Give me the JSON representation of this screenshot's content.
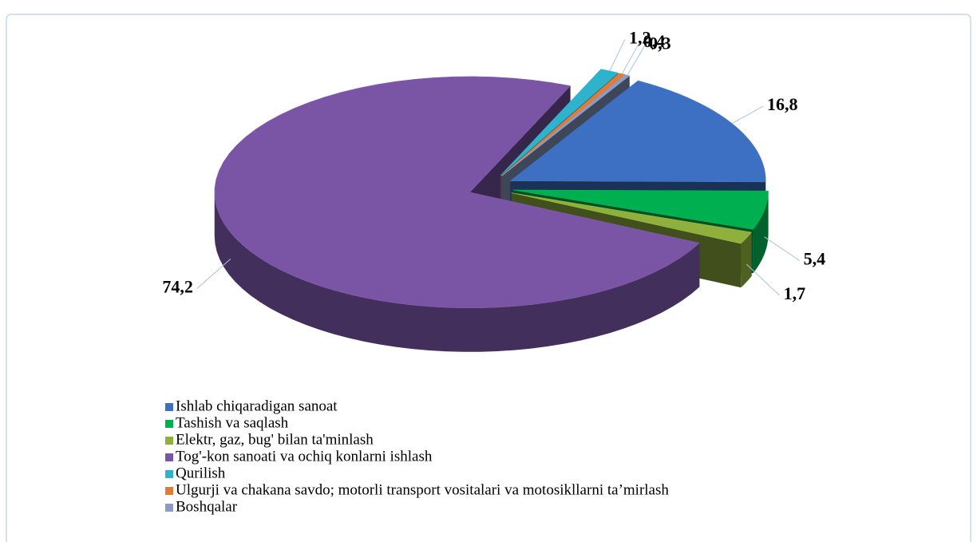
{
  "chart_data": {
    "type": "pie",
    "categories": [
      "Ishlab chiqaradigan sanoat",
      "Tashish va saqlash",
      "Elektr, gaz, bug' bilan ta'minlash",
      "Tog'-kon sanoati va ochiq konlarni ishlash",
      "Qurilish",
      "Ulgurji va chakana savdo;  motorli transport vositalari va  motosikllarni ta’mirlash",
      "Boshqalar"
    ],
    "values": [
      16.8,
      5.4,
      1.7,
      74.2,
      1.2,
      0.4,
      0.3
    ],
    "value_labels": [
      "16,8",
      "5,4",
      "1,7",
      "74,2",
      "1,2",
      "0,4",
      "0,3"
    ],
    "colors": [
      "#3d6fc2",
      "#00b050",
      "#8fb03c",
      "#7a55a6",
      "#2fb3cc",
      "#e07b39",
      "#8a9cc6"
    ],
    "legend": "bottom"
  }
}
